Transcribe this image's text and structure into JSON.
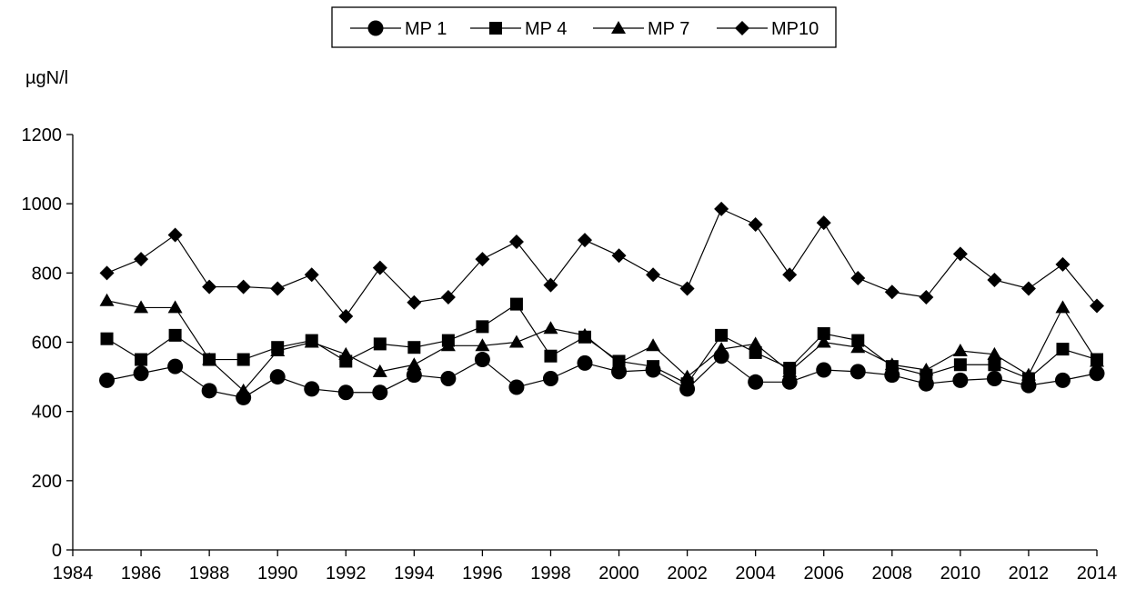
{
  "chart_data": {
    "type": "line",
    "title": "",
    "xlabel": "",
    "ylabel": "µgN/l",
    "xlim": [
      1984,
      2014
    ],
    "ylim": [
      0,
      1200
    ],
    "x_ticks": [
      1984,
      1986,
      1988,
      1990,
      1992,
      1994,
      1996,
      1998,
      2000,
      2002,
      2004,
      2006,
      2008,
      2010,
      2012,
      2014
    ],
    "y_ticks": [
      0,
      200,
      400,
      600,
      800,
      1000,
      1200
    ],
    "grid": false,
    "legend_position": "top-center",
    "x": [
      1985,
      1986,
      1987,
      1988,
      1989,
      1990,
      1991,
      1992,
      1993,
      1994,
      1995,
      1996,
      1997,
      1998,
      1999,
      2000,
      2001,
      2002,
      2003,
      2004,
      2005,
      2006,
      2007,
      2008,
      2009,
      2010,
      2011,
      2012,
      2013,
      2014
    ],
    "series": [
      {
        "name": "MP 1",
        "marker": "circle",
        "values": [
          490,
          510,
          530,
          460,
          440,
          500,
          465,
          455,
          455,
          505,
          495,
          550,
          470,
          495,
          540,
          515,
          520,
          465,
          560,
          485,
          485,
          520,
          515,
          505,
          480,
          490,
          495,
          475,
          490,
          510
        ]
      },
      {
        "name": "MP 4",
        "marker": "square",
        "values": [
          610,
          550,
          620,
          550,
          550,
          585,
          605,
          545,
          595,
          585,
          605,
          645,
          710,
          560,
          615,
          545,
          530,
          480,
          620,
          570,
          525,
          625,
          605,
          530,
          505,
          535,
          535,
          495,
          580,
          550
        ]
      },
      {
        "name": "MP 7",
        "marker": "triangle",
        "values": [
          720,
          700,
          700,
          550,
          460,
          575,
          600,
          565,
          515,
          535,
          590,
          590,
          600,
          640,
          620,
          540,
          590,
          500,
          580,
          595,
          515,
          600,
          585,
          535,
          520,
          575,
          565,
          505,
          700,
          545
        ]
      },
      {
        "name": "MP10",
        "marker": "diamond",
        "values": [
          800,
          840,
          910,
          760,
          760,
          755,
          795,
          675,
          815,
          715,
          730,
          840,
          890,
          765,
          895,
          850,
          795,
          755,
          985,
          940,
          795,
          945,
          785,
          745,
          730,
          855,
          780,
          755,
          825,
          705
        ]
      }
    ]
  }
}
